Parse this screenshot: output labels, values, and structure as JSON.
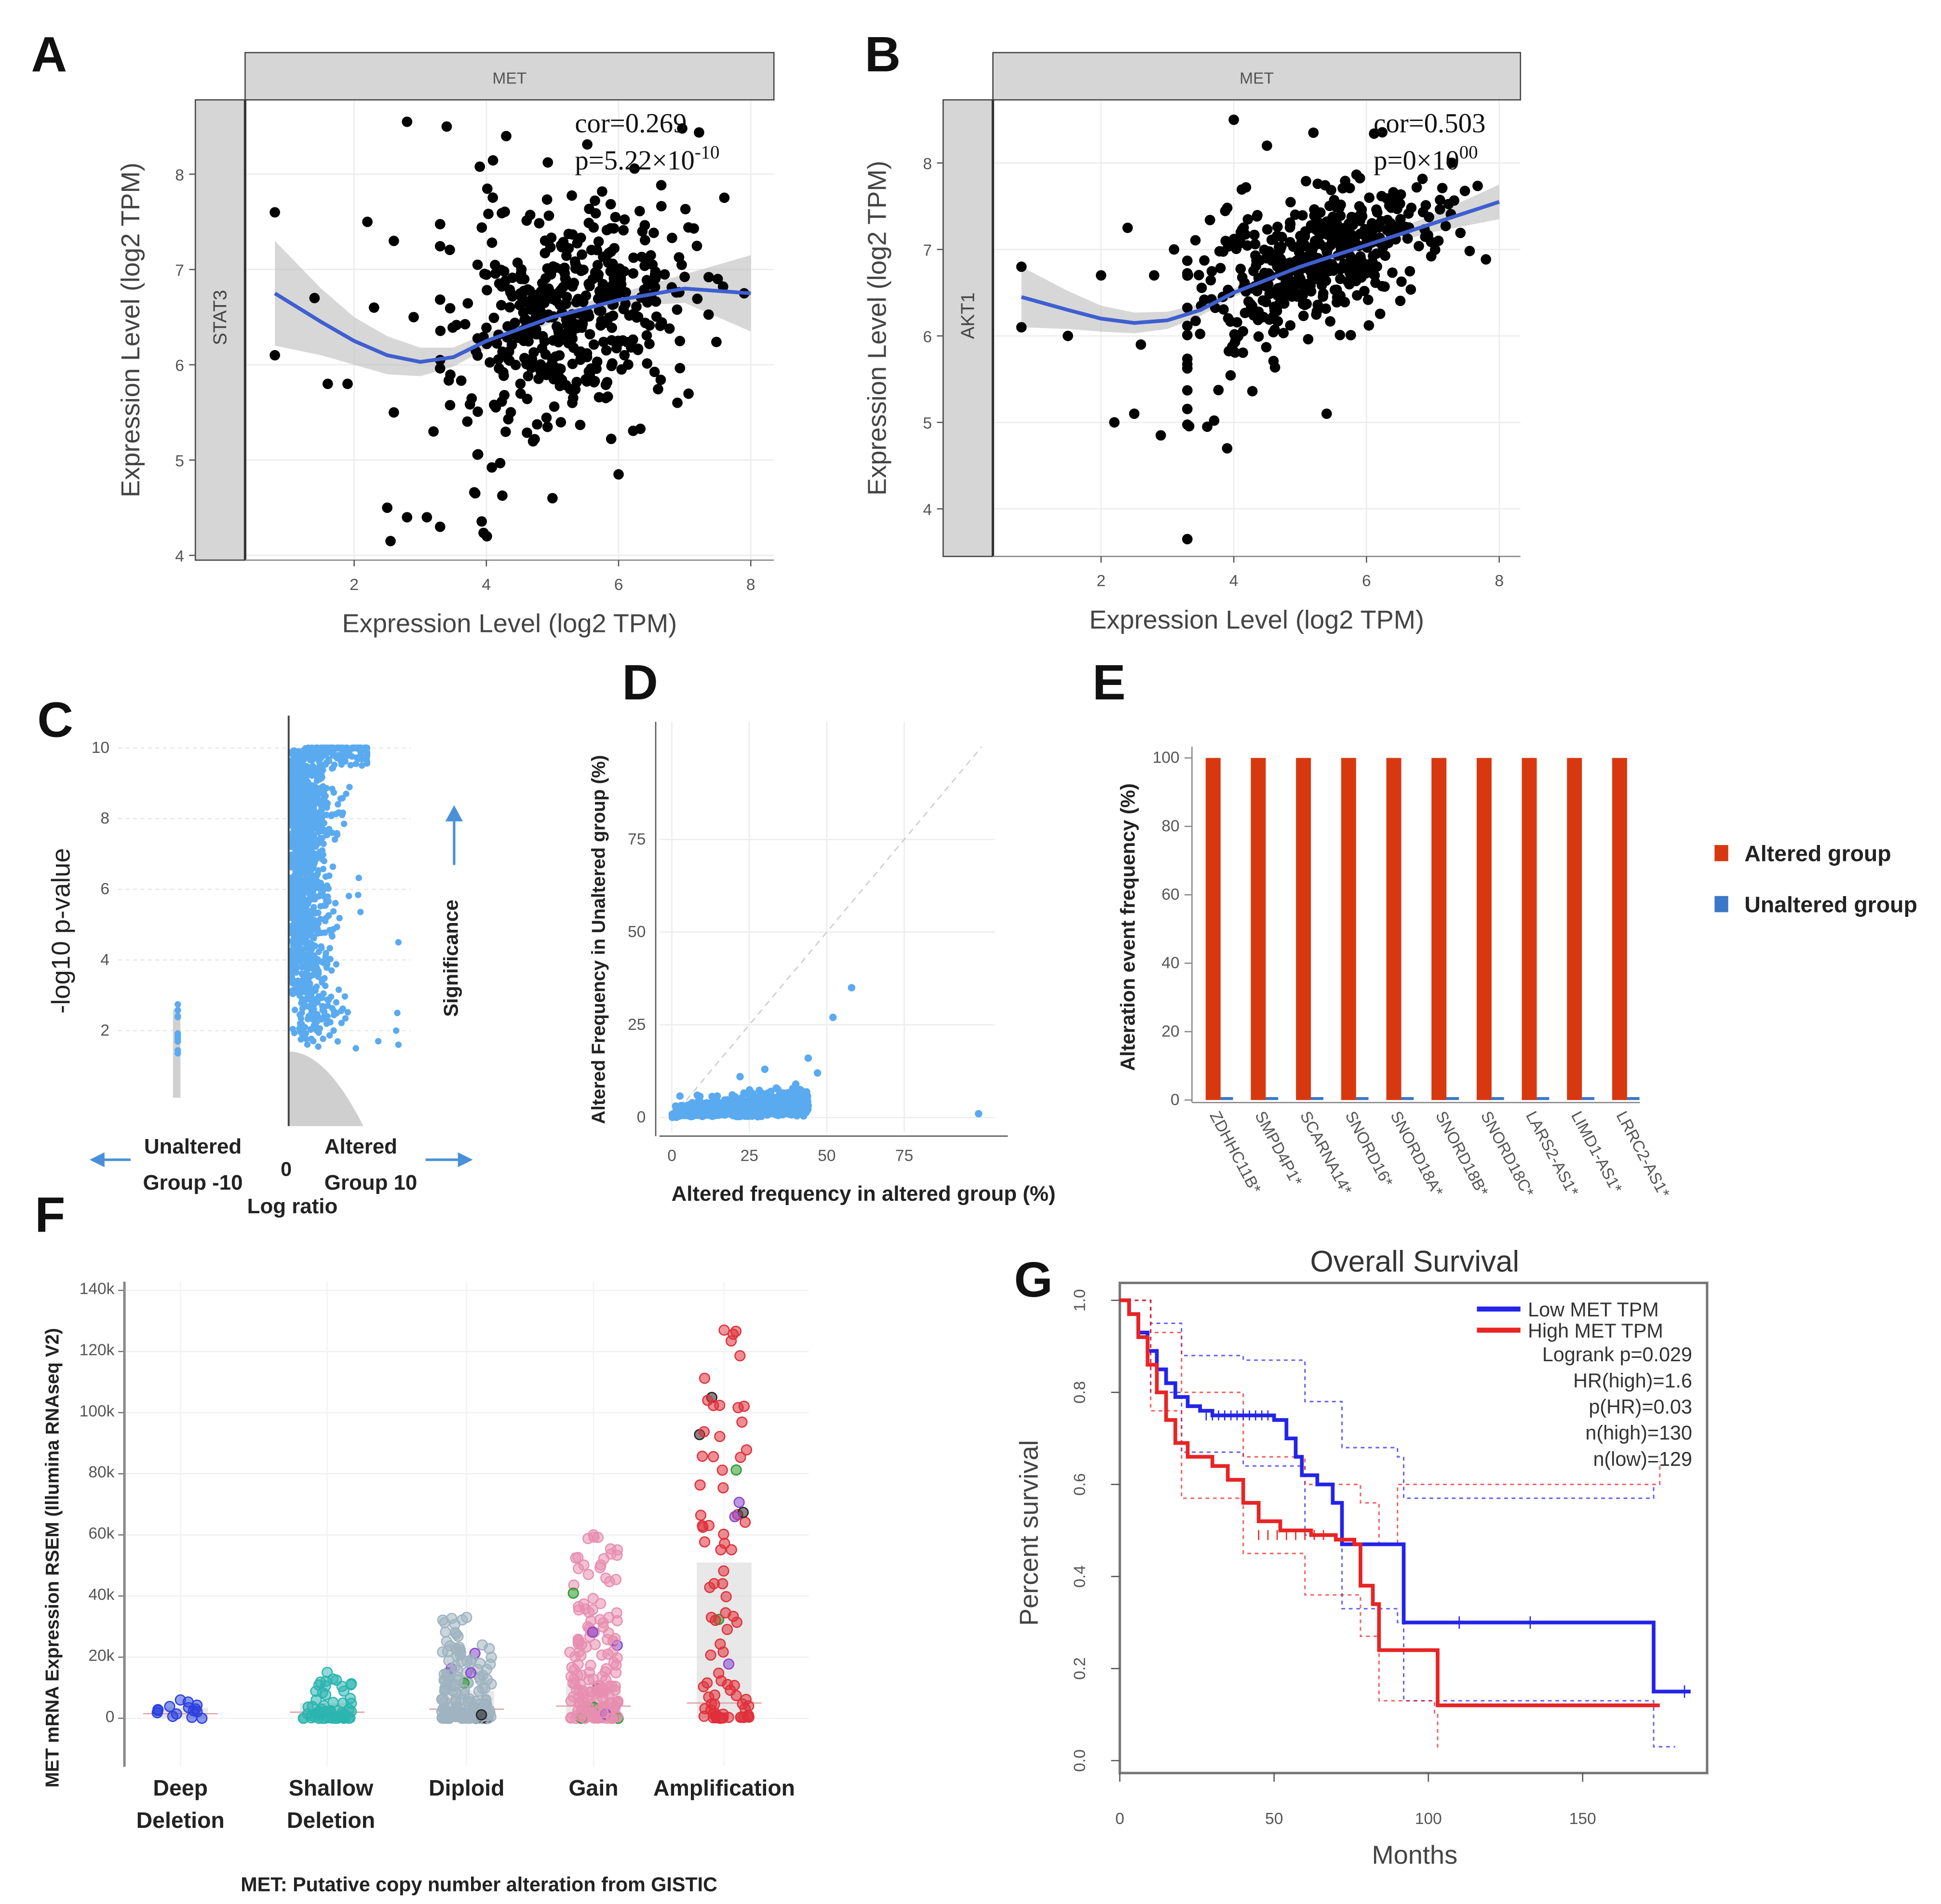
{
  "panel_labels": [
    "A",
    "B",
    "C",
    "D",
    "E",
    "F",
    "G"
  ],
  "chart_data": [
    {
      "id": "A",
      "type": "scatter",
      "facet_label": "MET",
      "row_label": "STAT3",
      "xlabel": "Expression Level (log2 TPM)",
      "ylabel": "Expression Level (log2 TPM)",
      "xlim": [
        0.35,
        8.35
      ],
      "ylim": [
        3.95,
        8.78
      ],
      "xticks": [
        2,
        4,
        6,
        8
      ],
      "yticks": [
        4,
        5,
        6,
        7,
        8
      ],
      "stats": {
        "cor": "cor=0.269",
        "p_base": "p=5.22×10",
        "p_exp": "-10"
      },
      "smooth": [
        [
          0.8,
          6.75
        ],
        [
          1.5,
          6.45
        ],
        [
          2,
          6.25
        ],
        [
          2.5,
          6.1
        ],
        [
          3,
          6.03
        ],
        [
          3.5,
          6.08
        ],
        [
          4,
          6.25
        ],
        [
          5,
          6.5
        ],
        [
          6,
          6.68
        ],
        [
          7,
          6.8
        ],
        [
          8,
          6.75
        ]
      ],
      "band_halfwidth": [
        0.55,
        0.35,
        0.25,
        0.2,
        0.15,
        0.1,
        0.08,
        0.06,
        0.07,
        0.15,
        0.4
      ],
      "outliers": [
        [
          0.8,
          7.6
        ],
        [
          0.8,
          6.1
        ],
        [
          1.4,
          6.7
        ],
        [
          1.6,
          5.8
        ],
        [
          2.2,
          7.5
        ],
        [
          2.6,
          7.3
        ],
        [
          2.8,
          8.55
        ],
        [
          3.4,
          8.5
        ],
        [
          2.5,
          4.5
        ],
        [
          2.55,
          4.15
        ],
        [
          2.8,
          4.4
        ],
        [
          3.1,
          4.4
        ],
        [
          3.3,
          4.3
        ],
        [
          3.2,
          5.3
        ],
        [
          2.6,
          5.5
        ],
        [
          1.9,
          5.8
        ],
        [
          2.3,
          6.6
        ],
        [
          2.9,
          6.5
        ],
        [
          4.3,
          8.4
        ],
        [
          5.3,
          5.6
        ],
        [
          6.0,
          4.85
        ],
        [
          5.0,
          4.6
        ],
        [
          7.5,
          6.9
        ],
        [
          7.9,
          6.75
        ]
      ],
      "cloud": {
        "n": 460,
        "x_mean": 5.2,
        "x_sd": 0.85,
        "noise_sd": 0.55,
        "x_min": 3.3,
        "x_max": 7.6,
        "seed": 11
      }
    },
    {
      "id": "B",
      "type": "scatter",
      "facet_label": "MET",
      "row_label": "AKT1",
      "xlabel": "Expression Level (log2 TPM)",
      "ylabel": "Expression Level (log2 TPM)",
      "xlim": [
        0.37,
        8.32
      ],
      "ylim": [
        3.45,
        8.73
      ],
      "xticks": [
        2,
        4,
        6,
        8
      ],
      "yticks": [
        4,
        5,
        6,
        7,
        8
      ],
      "stats": {
        "cor": "cor=0.503",
        "p_base": "p=0×10",
        "p_exp": "00"
      },
      "smooth": [
        [
          0.8,
          6.45
        ],
        [
          1.5,
          6.3
        ],
        [
          2,
          6.2
        ],
        [
          2.5,
          6.15
        ],
        [
          3,
          6.18
        ],
        [
          3.5,
          6.3
        ],
        [
          4,
          6.5
        ],
        [
          5,
          6.8
        ],
        [
          6,
          7.05
        ],
        [
          7,
          7.3
        ],
        [
          8,
          7.55
        ]
      ],
      "band_halfwidth": [
        0.35,
        0.22,
        0.15,
        0.12,
        0.1,
        0.07,
        0.05,
        0.04,
        0.05,
        0.1,
        0.2
      ],
      "outliers": [
        [
          0.8,
          6.8
        ],
        [
          0.8,
          6.1
        ],
        [
          1.5,
          6.0
        ],
        [
          2.0,
          6.7
        ],
        [
          2.4,
          7.25
        ],
        [
          2.2,
          5.0
        ],
        [
          2.5,
          5.1
        ],
        [
          2.9,
          4.85
        ],
        [
          3.3,
          3.65
        ],
        [
          3.6,
          4.95
        ],
        [
          3.9,
          4.7
        ],
        [
          4.0,
          8.5
        ],
        [
          4.5,
          8.2
        ],
        [
          5.2,
          8.35
        ],
        [
          5.4,
          5.1
        ],
        [
          2.8,
          6.7
        ],
        [
          3.1,
          7.0
        ],
        [
          2.6,
          5.9
        ]
      ],
      "cloud": {
        "n": 460,
        "x_mean": 5.1,
        "x_sd": 0.9,
        "noise_sd": 0.38,
        "x_min": 3.3,
        "x_max": 7.8,
        "seed": 23
      }
    },
    {
      "id": "C",
      "type": "scatter",
      "ylabel": "-log10 p-value",
      "xlabel": "Log ratio",
      "yticks": [
        2,
        4,
        6,
        8,
        10
      ],
      "ylim": [
        0,
        10.3
      ],
      "xlim": [
        -10,
        10
      ],
      "x_zero_label": "0",
      "left_label": [
        "Unaltered",
        "Group -10"
      ],
      "right_label": [
        "Altered",
        "Group 10"
      ],
      "significance_label": "Significance",
      "color": "#5aaaf0"
    },
    {
      "id": "D",
      "type": "scatter",
      "xlabel": "Altered frequency in altered group (%)",
      "ylabel": "Altered Frequency in Unaltered group (%)",
      "xticks": [
        0,
        25,
        50,
        75
      ],
      "yticks": [
        0,
        25,
        50,
        75
      ],
      "xlim": [
        0,
        100
      ],
      "ylim": [
        0,
        100
      ],
      "outliers": [
        [
          58,
          35
        ],
        [
          52,
          27
        ],
        [
          44,
          16
        ],
        [
          47,
          12
        ],
        [
          40,
          9
        ],
        [
          99,
          1
        ],
        [
          30,
          13
        ],
        [
          22,
          11
        ]
      ],
      "color": "#5aaaf0"
    },
    {
      "id": "E",
      "type": "bar",
      "ylabel": "Alteration event frequency (%)",
      "categories": [
        "ZDHHC11B*",
        "SMPD4P1*",
        "SCARNA14*",
        "SNORD16*",
        "SNORD18A*",
        "SNORD18B*",
        "SNORD18C*",
        "LARS2-AS1*",
        "LIMD1-AS1*",
        "LRRC2-AS1*"
      ],
      "series": [
        {
          "name": "Altered group",
          "color": "#d8380f",
          "values": [
            100,
            100,
            100,
            100,
            100,
            100,
            100,
            100,
            100,
            100
          ]
        },
        {
          "name": "Unaltered group",
          "color": "#3c78c8",
          "values": [
            0.5,
            0.5,
            0.5,
            0.5,
            0.5,
            0.5,
            0.5,
            0.5,
            0.5,
            0.5
          ]
        }
      ],
      "yticks": [
        0,
        20,
        40,
        60,
        80,
        100
      ],
      "ylim": [
        0,
        100
      ],
      "legend_position": "right"
    },
    {
      "id": "F",
      "type": "scatter",
      "ylabel": "MET mRNA Expression RSEM (Illumina RNAseq V2)",
      "xlabel": "MET: Putative copy number alteration from GISTIC",
      "categories": [
        [
          "Deep",
          "Deletion"
        ],
        [
          "Shallow",
          "Deletion"
        ],
        [
          "Diploid"
        ],
        [
          "Gain"
        ],
        [
          "Amplification"
        ]
      ],
      "yticks": [
        0,
        20000,
        40000,
        60000,
        80000,
        100000,
        120000,
        140000
      ],
      "ytick_labels": [
        "0",
        "20k",
        "40k",
        "60k",
        "80k",
        "100k",
        "120k",
        "140k"
      ],
      "ylim": [
        -4000,
        142000
      ],
      "groups": [
        {
          "color": "#2b3fe0",
          "n": 14,
          "max": 6000,
          "median": 1500,
          "q3": 3500
        },
        {
          "color": "#2bb5b0",
          "n": 60,
          "max": 15000,
          "median": 2000,
          "q3": 5000
        },
        {
          "color": "#9fb3c0",
          "n": 160,
          "max": 33000,
          "median": 3000,
          "q3": 9000
        },
        {
          "color": "#e88fb0",
          "n": 180,
          "max": 60000,
          "median": 4000,
          "q3": 11000
        },
        {
          "color": "#e0303a",
          "n": 90,
          "max": 127000,
          "median": 5000,
          "q3": 51000
        }
      ]
    },
    {
      "id": "G",
      "type": "line",
      "title": "Overall Survival",
      "xlabel": "Months",
      "ylabel": "Percent survival",
      "xticks": [
        0,
        50,
        100,
        150
      ],
      "yticks": [
        0.0,
        0.2,
        0.4,
        0.6,
        0.8,
        1.0
      ],
      "ytick_labels": [
        "0.0",
        "0.2",
        "0.4",
        "0.6",
        "0.8",
        "1.0"
      ],
      "xlim": [
        0,
        190
      ],
      "ylim": [
        -0.01,
        1.04
      ],
      "legend": [
        "Low MET TPM",
        "High MET TPM"
      ],
      "stats": [
        "Logrank p=0.029",
        "HR(high)=1.6",
        "p(HR)=0.03",
        "n(high)=130",
        "n(low)=129"
      ],
      "series": [
        {
          "name": "Low MET TPM",
          "color": "#2424e8",
          "points": [
            [
              0,
              1
            ],
            [
              3,
              0.97
            ],
            [
              6,
              0.93
            ],
            [
              9,
              0.89
            ],
            [
              12,
              0.85
            ],
            [
              15,
              0.82
            ],
            [
              18,
              0.79
            ],
            [
              22,
              0.77
            ],
            [
              26,
              0.76
            ],
            [
              30,
              0.75
            ],
            [
              50,
              0.74
            ],
            [
              54,
              0.7
            ],
            [
              57,
              0.66
            ],
            [
              59,
              0.62
            ],
            [
              64,
              0.6
            ],
            [
              69,
              0.56
            ],
            [
              72,
              0.47
            ],
            [
              91,
              0.47
            ],
            [
              92,
              0.3
            ],
            [
              172,
              0.3
            ],
            [
              173,
              0.15
            ],
            [
              185,
              0.15
            ]
          ],
          "upper": [
            [
              0,
              1
            ],
            [
              10,
              0.95
            ],
            [
              20,
              0.88
            ],
            [
              40,
              0.87
            ],
            [
              60,
              0.78
            ],
            [
              72,
              0.68
            ],
            [
              90,
              0.66
            ],
            [
              92,
              0.57
            ],
            [
              172,
              0.57
            ],
            [
              173,
              0.6
            ]
          ],
          "lower": [
            [
              0,
              1
            ],
            [
              10,
              0.8
            ],
            [
              20,
              0.67
            ],
            [
              40,
              0.64
            ],
            [
              60,
              0.49
            ],
            [
              72,
              0.33
            ],
            [
              90,
              0.3
            ],
            [
              92,
              0.13
            ],
            [
              172,
              0.13
            ],
            [
              173,
              0.03
            ],
            [
              180,
              0.03
            ]
          ]
        },
        {
          "name": "High MET TPM",
          "color": "#e82424",
          "points": [
            [
              0,
              1
            ],
            [
              3,
              0.97
            ],
            [
              6,
              0.92
            ],
            [
              9,
              0.86
            ],
            [
              12,
              0.8
            ],
            [
              15,
              0.74
            ],
            [
              18,
              0.69
            ],
            [
              22,
              0.66
            ],
            [
              30,
              0.64
            ],
            [
              35,
              0.61
            ],
            [
              40,
              0.56
            ],
            [
              45,
              0.52
            ],
            [
              52,
              0.5
            ],
            [
              62,
              0.49
            ],
            [
              70,
              0.48
            ],
            [
              76,
              0.47
            ],
            [
              78,
              0.38
            ],
            [
              82,
              0.34
            ],
            [
              84,
              0.24
            ],
            [
              102,
              0.24
            ],
            [
              103,
              0.12
            ],
            [
              175,
              0.12
            ]
          ],
          "upper": [
            [
              0,
              1
            ],
            [
              10,
              0.93
            ],
            [
              20,
              0.8
            ],
            [
              40,
              0.66
            ],
            [
              60,
              0.6
            ],
            [
              78,
              0.56
            ],
            [
              84,
              0.47
            ],
            [
              90,
              0.6
            ],
            [
              102,
              0.6
            ],
            [
              103,
              0.6
            ],
            [
              175,
              0.65
            ]
          ],
          "lower": [
            [
              0,
              1
            ],
            [
              10,
              0.76
            ],
            [
              20,
              0.57
            ],
            [
              40,
              0.45
            ],
            [
              60,
              0.36
            ],
            [
              78,
              0.27
            ],
            [
              84,
              0.13
            ],
            [
              102,
              0.1
            ],
            [
              103,
              0.02
            ]
          ]
        }
      ]
    }
  ]
}
